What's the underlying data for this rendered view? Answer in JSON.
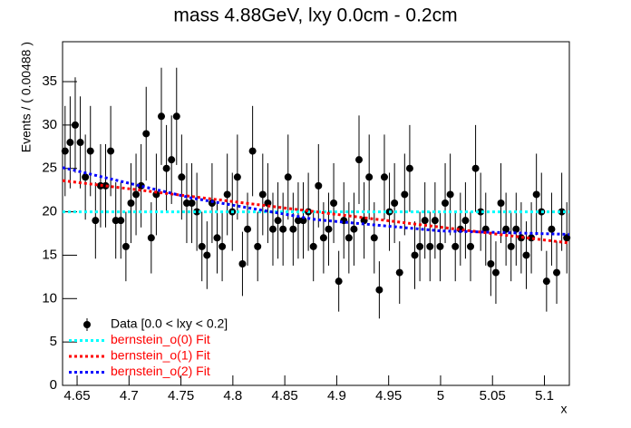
{
  "chart_data": {
    "type": "errorbar",
    "title": "mass 4.88GeV, lxy 0.0cm - 0.2cm",
    "x_label": "x",
    "y_label": "Events / ( 0.00488 )",
    "xlim": [
      4.636,
      5.124
    ],
    "ylim": [
      0,
      39.6
    ],
    "xticks": [
      4.65,
      4.7,
      4.75,
      4.8,
      4.85,
      4.9,
      4.95,
      5,
      5.05,
      5.1
    ],
    "yticks": [
      0,
      5,
      10,
      15,
      20,
      25,
      30,
      35
    ],
    "legend": "lower left",
    "series": [
      {
        "name": "Data [0.0 < lxy < 0.2]",
        "color": "#000000",
        "label_color": "#000000",
        "kind": "points",
        "x": [
          4.63844,
          4.64332,
          4.6482,
          4.65308,
          4.65796,
          4.66284,
          4.66772,
          4.6726,
          4.67748,
          4.68236,
          4.68724,
          4.69212,
          4.697,
          4.70188,
          4.70676,
          4.71164,
          4.71652,
          4.7214,
          4.72628,
          4.73116,
          4.73604,
          4.74092,
          4.7458,
          4.75068,
          4.75556,
          4.76044,
          4.76532,
          4.7702,
          4.77508,
          4.77996,
          4.78484,
          4.78972,
          4.7946,
          4.79948,
          4.80436,
          4.80924,
          4.81412,
          4.819,
          4.82388,
          4.82876,
          4.83364,
          4.83852,
          4.8434,
          4.84828,
          4.85316,
          4.85804,
          4.86292,
          4.8678,
          4.87268,
          4.87756,
          4.88244,
          4.88732,
          4.8922,
          4.89708,
          4.90196,
          4.90684,
          4.91172,
          4.9166,
          4.92148,
          4.92636,
          4.93124,
          4.93612,
          4.941,
          4.94588,
          4.95076,
          4.95564,
          4.96052,
          4.9654,
          4.97028,
          4.97516,
          4.98004,
          4.98492,
          4.9898,
          4.99468,
          4.99956,
          5.00444,
          5.00932,
          5.0142,
          5.01908,
          5.02396,
          5.02884,
          5.03372,
          5.0386,
          5.04348,
          5.04836,
          5.05324,
          5.05812,
          5.063,
          5.06788,
          5.07276,
          5.07764,
          5.08252,
          5.0874,
          5.09228,
          5.09716,
          5.10204,
          5.10692,
          5.1118,
          5.11668,
          5.12156
        ],
        "values": [
          27,
          28,
          30,
          28,
          24,
          27,
          19,
          23,
          23,
          27,
          19,
          19,
          16,
          21,
          22,
          23,
          29,
          17,
          22,
          31,
          25,
          26,
          31,
          24,
          21,
          21,
          20,
          16,
          15,
          21,
          17,
          16,
          22,
          20,
          24,
          14,
          18,
          27,
          16,
          22,
          21,
          18,
          19,
          18,
          24,
          18,
          19,
          19,
          20,
          16,
          23,
          17,
          18,
          21,
          12,
          19,
          17,
          18,
          26,
          19,
          24,
          17,
          11,
          24,
          20,
          21,
          13,
          22,
          25,
          15,
          16,
          19,
          16,
          19,
          16,
          21,
          22,
          16,
          18,
          19,
          16,
          25,
          20,
          18,
          14,
          13,
          21,
          18,
          16,
          18,
          17,
          15,
          17,
          22,
          20,
          12,
          18,
          13,
          20,
          17
        ],
        "errors": [
          5.2,
          5.3,
          5.5,
          5.3,
          4.9,
          5.2,
          4.4,
          4.8,
          4.8,
          5.2,
          4.4,
          4.4,
          4,
          4.6,
          4.7,
          4.8,
          5.4,
          4.1,
          4.7,
          5.6,
          5,
          5.1,
          5.6,
          4.9,
          4.6,
          4.6,
          4.5,
          4,
          3.9,
          4.6,
          4.1,
          4,
          4.7,
          4.5,
          4.9,
          3.7,
          4.2,
          5.2,
          4,
          4.7,
          4.6,
          4.2,
          4.4,
          4.2,
          4.9,
          4.2,
          4.4,
          4.4,
          4.5,
          4,
          4.8,
          4.1,
          4.2,
          4.6,
          3.5,
          4.4,
          4.1,
          4.2,
          5.1,
          4.4,
          4.9,
          4.1,
          3.3,
          4.9,
          4.5,
          4.6,
          3.6,
          4.7,
          5,
          3.9,
          4,
          4.4,
          4,
          4.4,
          4,
          4.6,
          4.7,
          4,
          4.2,
          4.4,
          4,
          5,
          4.5,
          4.2,
          3.7,
          3.6,
          4.6,
          4.2,
          4,
          4.2,
          4.1,
          3.9,
          4.1,
          4.7,
          4.5,
          3.5,
          4.2,
          3.6,
          4.5,
          4.1
        ]
      },
      {
        "name": "bernstein_o(0) Fit",
        "color": "#00ffff",
        "label_color": "#ff0000",
        "kind": "line",
        "x": [
          4.636,
          5.124
        ],
        "values": [
          20,
          20
        ]
      },
      {
        "name": "bernstein_o(1) Fit",
        "color": "#ff0000",
        "label_color": "#ff0000",
        "kind": "line",
        "x": [
          4.636,
          5.124
        ],
        "values": [
          23.6,
          16.4
        ]
      },
      {
        "name": "bernstein_o(2) Fit",
        "color": "#0000ff",
        "label_color": "#ff0000",
        "kind": "line",
        "x": [
          4.636,
          4.76,
          4.88,
          5.0,
          5.124
        ],
        "values": [
          25.1,
          21.6,
          19.1,
          17.8,
          17.4
        ]
      }
    ]
  }
}
